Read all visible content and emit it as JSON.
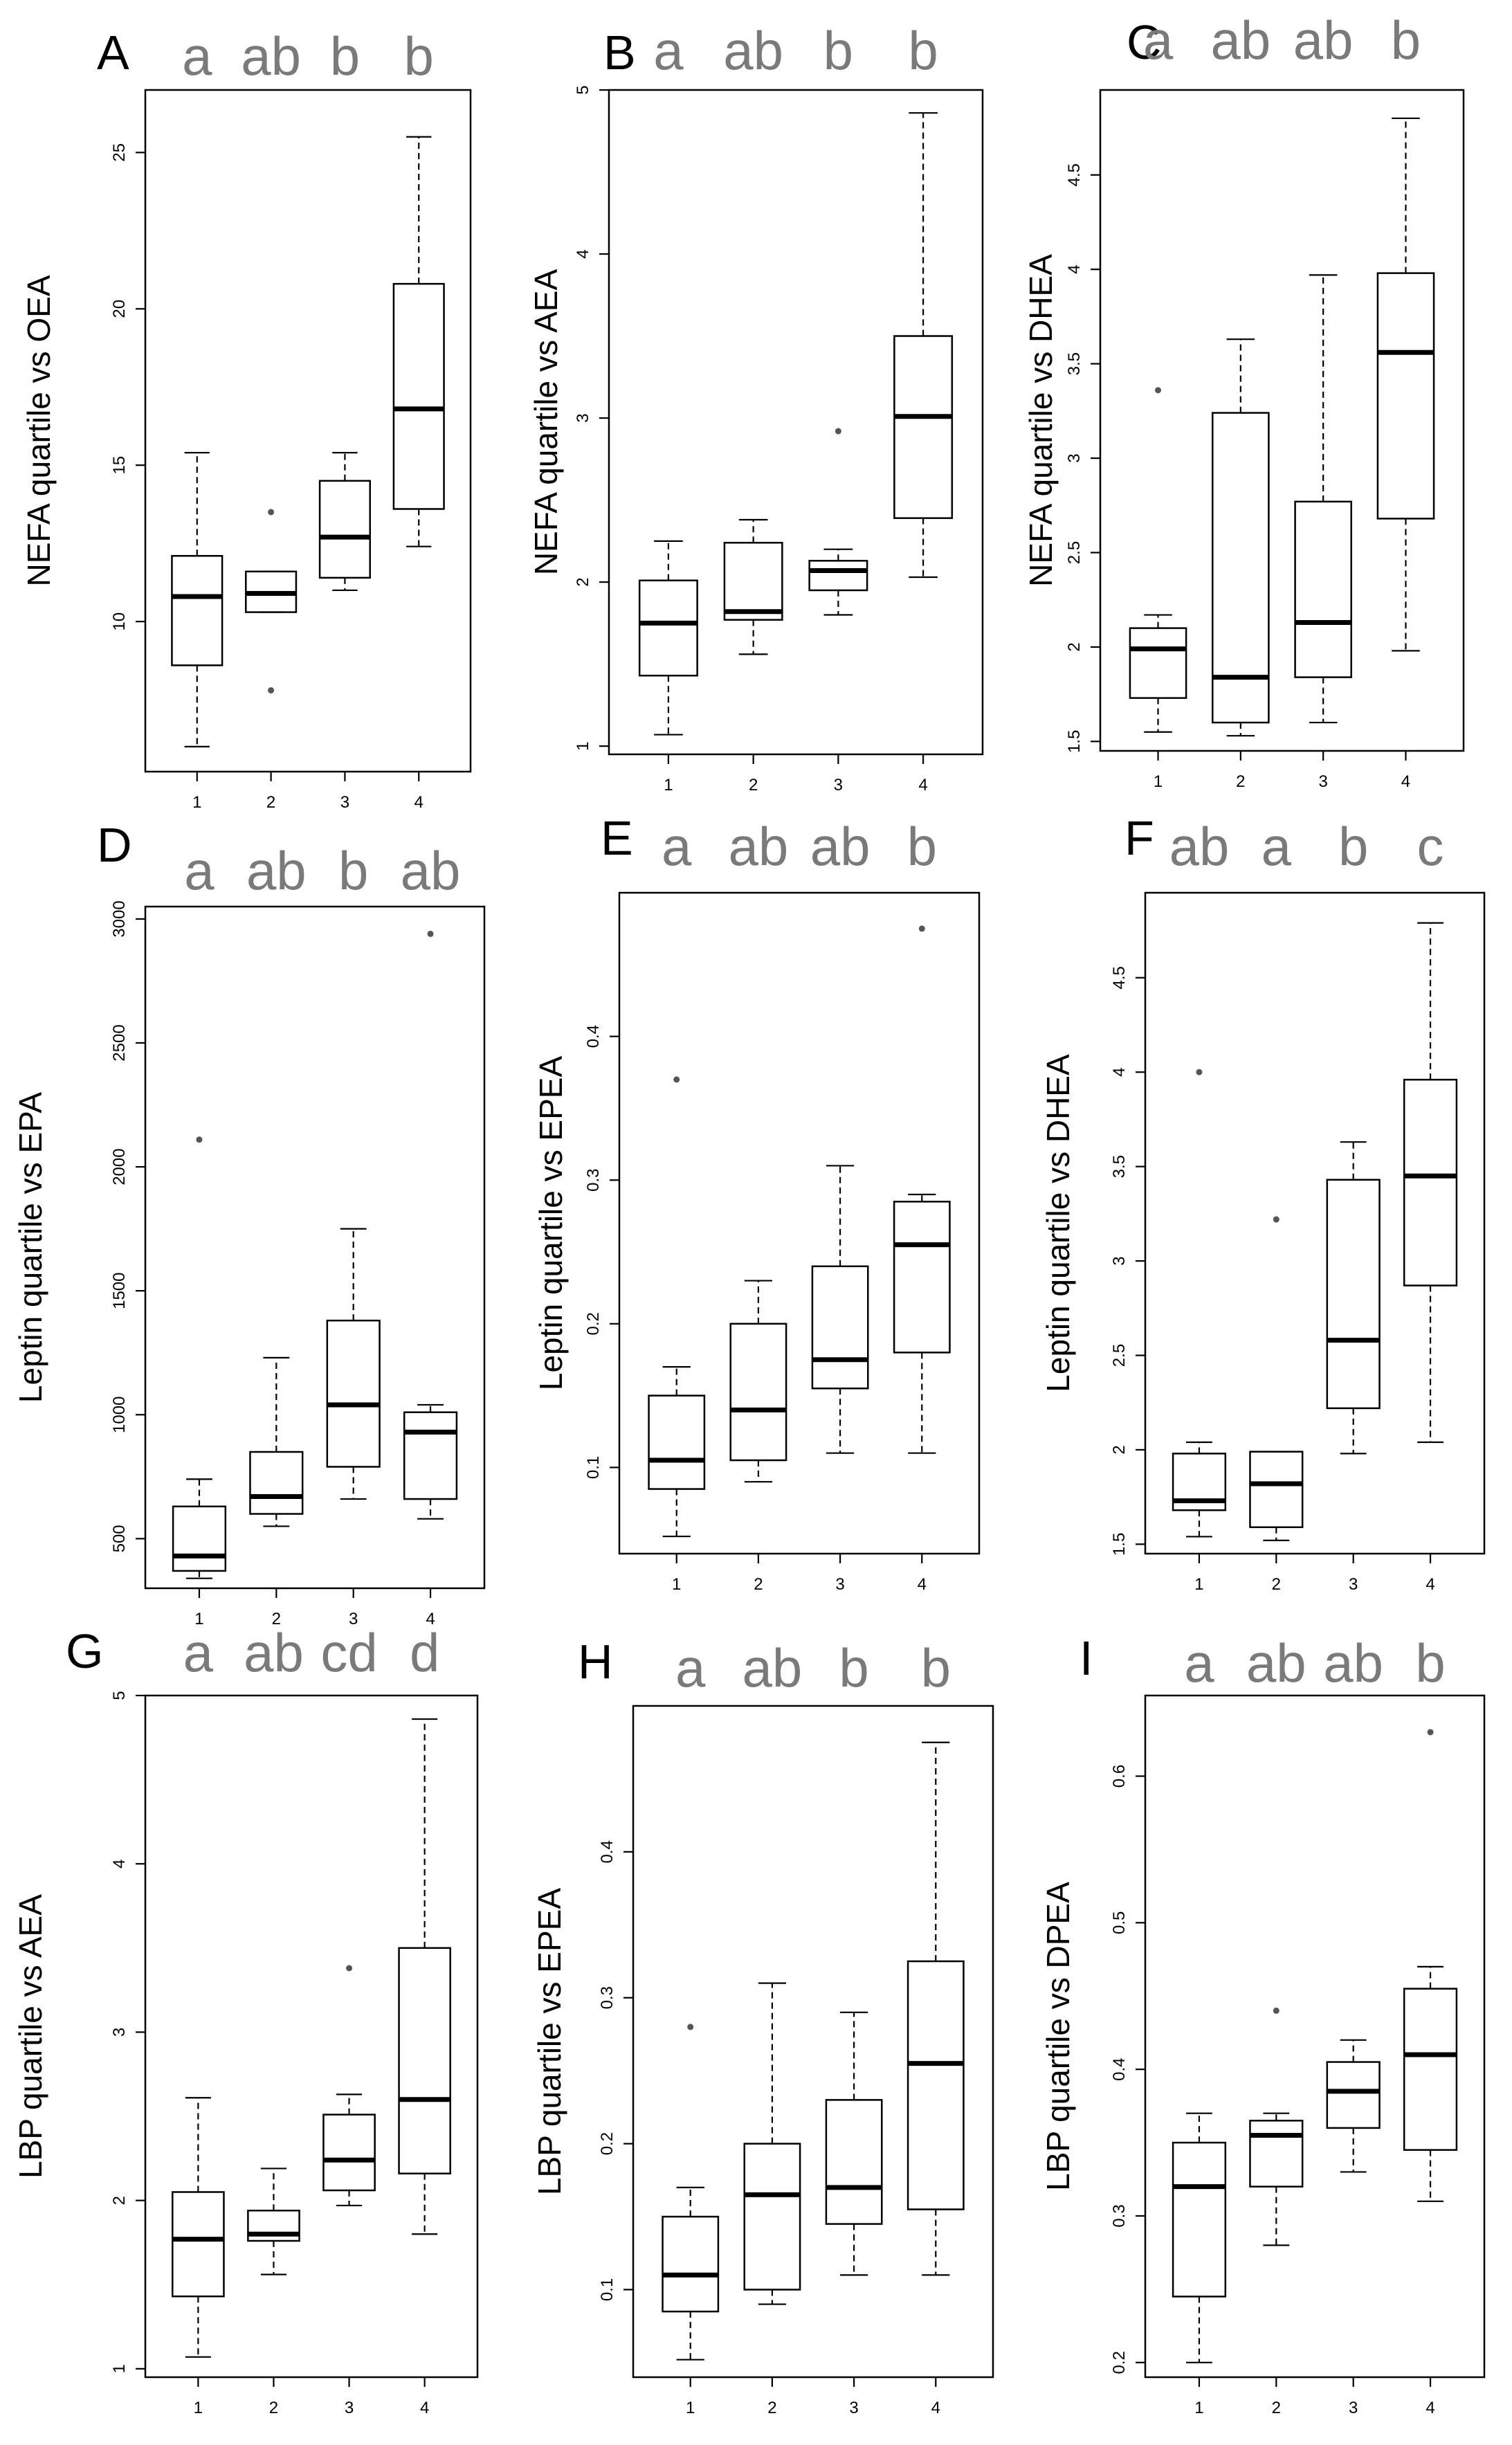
{
  "chart_data": [
    {
      "type": "box",
      "panel": "A",
      "ylabel": "NEFA quartile vs OEA",
      "categories": [
        "1",
        "2",
        "3",
        "4"
      ],
      "significance": [
        "a",
        "ab",
        "b",
        "b"
      ],
      "ylim": [
        5.2,
        27
      ],
      "yticks": [
        10,
        15,
        20,
        25
      ],
      "boxes": [
        {
          "min": 6.0,
          "q1": 8.6,
          "median": 10.8,
          "q3": 12.1,
          "max": 15.4,
          "outliers": []
        },
        {
          "min": 10.3,
          "q1": 10.3,
          "median": 10.9,
          "q3": 11.6,
          "max": 11.6,
          "outliers": [
            13.5,
            7.8
          ]
        },
        {
          "min": 11.0,
          "q1": 11.4,
          "median": 12.7,
          "q3": 14.5,
          "max": 15.4,
          "outliers": []
        },
        {
          "min": 12.4,
          "q1": 13.6,
          "median": 16.8,
          "q3": 20.8,
          "max": 25.5,
          "outliers": []
        }
      ]
    },
    {
      "type": "box",
      "panel": "B",
      "ylabel": "NEFA quartile vs AEA",
      "categories": [
        "1",
        "2",
        "3",
        "4"
      ],
      "significance": [
        "a",
        "ab",
        "b",
        "b"
      ],
      "ylim": [
        0.95,
        5.0
      ],
      "yticks": [
        1,
        2,
        3,
        4,
        5
      ],
      "boxes": [
        {
          "min": 1.07,
          "q1": 1.43,
          "median": 1.75,
          "q3": 2.01,
          "max": 2.25,
          "outliers": []
        },
        {
          "min": 1.56,
          "q1": 1.77,
          "median": 1.82,
          "q3": 2.24,
          "max": 2.38,
          "outliers": []
        },
        {
          "min": 1.8,
          "q1": 1.95,
          "median": 2.07,
          "q3": 2.13,
          "max": 2.2,
          "outliers": [
            2.92
          ]
        },
        {
          "min": 2.03,
          "q1": 2.39,
          "median": 3.01,
          "q3": 3.5,
          "max": 4.86,
          "outliers": []
        }
      ]
    },
    {
      "type": "box",
      "panel": "C",
      "ylabel": "NEFA quartile vs DHEA",
      "categories": [
        "1",
        "2",
        "3",
        "4"
      ],
      "significance": [
        "a",
        "ab",
        "ab",
        "b"
      ],
      "ylim": [
        1.45,
        4.95
      ],
      "yticks": [
        1.5,
        2.0,
        2.5,
        3.0,
        3.5,
        4.0,
        4.5
      ],
      "boxes": [
        {
          "min": 1.55,
          "q1": 1.73,
          "median": 1.99,
          "q3": 2.1,
          "max": 2.17,
          "outliers": [
            3.36
          ]
        },
        {
          "min": 1.53,
          "q1": 1.6,
          "median": 1.84,
          "q3": 3.24,
          "max": 3.63,
          "outliers": []
        },
        {
          "min": 1.6,
          "q1": 1.84,
          "median": 2.13,
          "q3": 2.77,
          "max": 3.97,
          "outliers": []
        },
        {
          "min": 1.98,
          "q1": 2.68,
          "median": 3.56,
          "q3": 3.98,
          "max": 4.8,
          "outliers": []
        }
      ]
    },
    {
      "type": "box",
      "panel": "D",
      "ylabel": "Leptin quartile vs EPA",
      "categories": [
        "1",
        "2",
        "3",
        "4"
      ],
      "significance": [
        "a",
        "ab",
        "b",
        "ab"
      ],
      "ylim": [
        300,
        3050
      ],
      "yticks": [
        500,
        1000,
        1500,
        2000,
        2500,
        3000
      ],
      "boxes": [
        {
          "min": 340,
          "q1": 370,
          "median": 430,
          "q3": 630,
          "max": 740,
          "outliers": [
            2110
          ]
        },
        {
          "min": 550,
          "q1": 600,
          "median": 670,
          "q3": 850,
          "max": 1230,
          "outliers": []
        },
        {
          "min": 660,
          "q1": 790,
          "median": 1040,
          "q3": 1380,
          "max": 1750,
          "outliers": []
        },
        {
          "min": 580,
          "q1": 660,
          "median": 930,
          "q3": 1010,
          "max": 1040,
          "outliers": [
            2940
          ]
        }
      ]
    },
    {
      "type": "box",
      "panel": "E",
      "ylabel": "Leptin quartile vs EPEA",
      "categories": [
        "1",
        "2",
        "3",
        "4"
      ],
      "significance": [
        "a",
        "ab",
        "ab",
        "b"
      ],
      "ylim": [
        0.04,
        0.5
      ],
      "yticks": [
        0.1,
        0.2,
        0.3,
        0.4
      ],
      "boxes": [
        {
          "min": 0.052,
          "q1": 0.085,
          "median": 0.105,
          "q3": 0.15,
          "max": 0.17,
          "outliers": [
            0.37
          ]
        },
        {
          "min": 0.09,
          "q1": 0.105,
          "median": 0.14,
          "q3": 0.2,
          "max": 0.23,
          "outliers": []
        },
        {
          "min": 0.11,
          "q1": 0.155,
          "median": 0.175,
          "q3": 0.24,
          "max": 0.31,
          "outliers": []
        },
        {
          "min": 0.11,
          "q1": 0.18,
          "median": 0.255,
          "q3": 0.285,
          "max": 0.29,
          "outliers": [
            0.475
          ]
        }
      ]
    },
    {
      "type": "box",
      "panel": "F",
      "ylabel": "Leptin quartile vs DHEA",
      "categories": [
        "1",
        "2",
        "3",
        "4"
      ],
      "significance": [
        "ab",
        "a",
        "b",
        "c"
      ],
      "ylim": [
        1.45,
        4.95
      ],
      "yticks": [
        1.5,
        2.0,
        2.5,
        3.0,
        3.5,
        4.0,
        4.5
      ],
      "boxes": [
        {
          "min": 1.54,
          "q1": 1.68,
          "median": 1.73,
          "q3": 1.98,
          "max": 2.04,
          "outliers": [
            4.0
          ]
        },
        {
          "min": 1.52,
          "q1": 1.59,
          "median": 1.82,
          "q3": 1.99,
          "max": 1.99,
          "outliers": [
            3.22
          ]
        },
        {
          "min": 1.98,
          "q1": 2.22,
          "median": 2.58,
          "q3": 3.43,
          "max": 3.63,
          "outliers": []
        },
        {
          "min": 2.04,
          "q1": 2.87,
          "median": 3.45,
          "q3": 3.96,
          "max": 4.79,
          "outliers": []
        }
      ]
    },
    {
      "type": "box",
      "panel": "G",
      "ylabel": "LBP quartile vs AEA",
      "categories": [
        "1",
        "2",
        "3",
        "4"
      ],
      "significance": [
        "a",
        "ab",
        "cd",
        "d"
      ],
      "ylim": [
        0.95,
        5.0
      ],
      "yticks": [
        1,
        2,
        3,
        4,
        5
      ],
      "boxes": [
        {
          "min": 1.07,
          "q1": 1.43,
          "median": 1.77,
          "q3": 2.05,
          "max": 2.61,
          "outliers": []
        },
        {
          "min": 1.56,
          "q1": 1.76,
          "median": 1.8,
          "q3": 1.94,
          "max": 2.19,
          "outliers": []
        },
        {
          "min": 1.97,
          "q1": 2.06,
          "median": 2.24,
          "q3": 2.51,
          "max": 2.63,
          "outliers": [
            3.38
          ]
        },
        {
          "min": 1.8,
          "q1": 2.16,
          "median": 2.6,
          "q3": 3.5,
          "max": 4.86,
          "outliers": []
        }
      ]
    },
    {
      "type": "box",
      "panel": "H",
      "ylabel": "LBP quartile vs EPEA",
      "categories": [
        "1",
        "2",
        "3",
        "4"
      ],
      "significance": [
        "a",
        "ab",
        "b",
        "b"
      ],
      "ylim": [
        0.04,
        0.5
      ],
      "yticks": [
        0.1,
        0.2,
        0.3,
        0.4
      ],
      "boxes": [
        {
          "min": 0.052,
          "q1": 0.085,
          "median": 0.11,
          "q3": 0.15,
          "max": 0.17,
          "outliers": [
            0.28
          ]
        },
        {
          "min": 0.09,
          "q1": 0.1,
          "median": 0.165,
          "q3": 0.2,
          "max": 0.31,
          "outliers": []
        },
        {
          "min": 0.11,
          "q1": 0.145,
          "median": 0.17,
          "q3": 0.23,
          "max": 0.29,
          "outliers": []
        },
        {
          "min": 0.11,
          "q1": 0.155,
          "median": 0.255,
          "q3": 0.325,
          "max": 0.475,
          "outliers": []
        }
      ]
    },
    {
      "type": "box",
      "panel": "I",
      "ylabel": "LBP quartile vs DPEA",
      "categories": [
        "1",
        "2",
        "3",
        "4"
      ],
      "significance": [
        "a",
        "ab",
        "ab",
        "b"
      ],
      "ylim": [
        0.19,
        0.655
      ],
      "yticks": [
        0.2,
        0.3,
        0.4,
        0.5,
        0.6
      ],
      "boxes": [
        {
          "min": 0.2,
          "q1": 0.245,
          "median": 0.32,
          "q3": 0.35,
          "max": 0.37,
          "outliers": []
        },
        {
          "min": 0.28,
          "q1": 0.32,
          "median": 0.355,
          "q3": 0.365,
          "max": 0.37,
          "outliers": [
            0.44
          ]
        },
        {
          "min": 0.33,
          "q1": 0.36,
          "median": 0.385,
          "q3": 0.405,
          "max": 0.42,
          "outliers": []
        },
        {
          "min": 0.31,
          "q1": 0.345,
          "median": 0.41,
          "q3": 0.455,
          "max": 0.47,
          "outliers": [
            0.63
          ]
        }
      ]
    }
  ]
}
